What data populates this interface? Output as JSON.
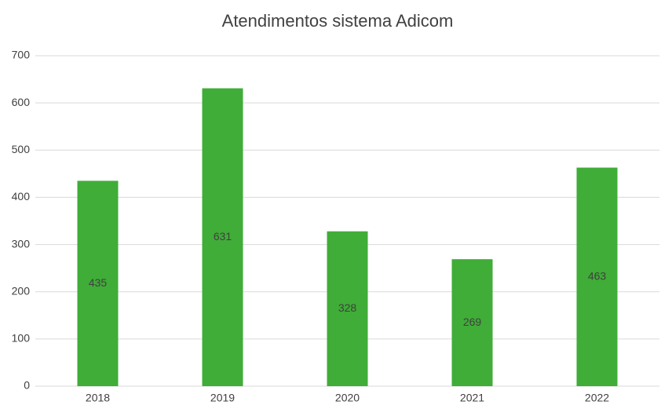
{
  "chart_data": {
    "type": "bar",
    "title": "Atendimentos sistema Adicom",
    "categories": [
      "2018",
      "2019",
      "2020",
      "2021",
      "2022"
    ],
    "values": [
      435,
      631,
      328,
      269,
      463
    ],
    "color": "#3fad37",
    "ylim": [
      0,
      700
    ],
    "yticks": [
      0,
      100,
      200,
      300,
      400,
      500,
      600,
      700
    ],
    "grid": true
  }
}
